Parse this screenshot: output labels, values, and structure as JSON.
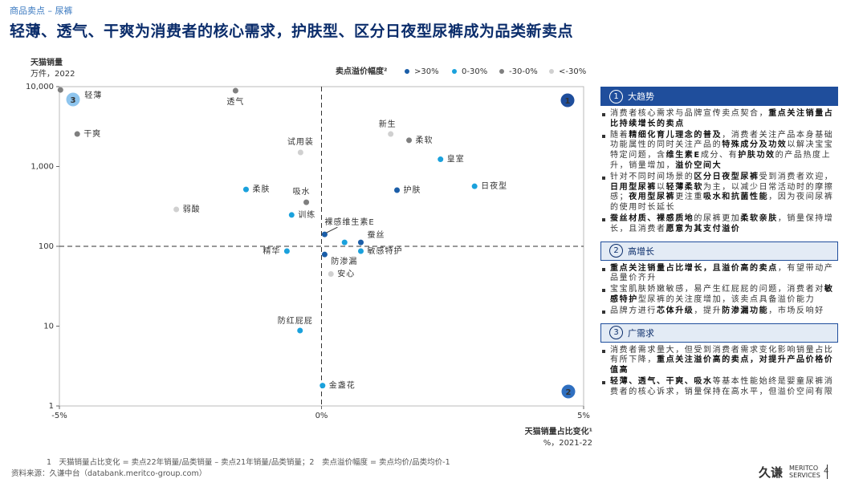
{
  "header": {
    "breadcrumb": "商品卖点 – 尿裤",
    "title": "轻薄、透气、干爽为消费者的核心需求，护肤型、区分日夜型尿裤成为品类新卖点"
  },
  "chart_data": {
    "type": "scatter",
    "y_title": "天猫销量",
    "y_subtitle": "万件，2022",
    "x_title": "天猫销量占比变化¹",
    "x_subtitle": "%，2021-22",
    "legend_title": "卖点溢价幅度²",
    "log_y": true,
    "xlim": [
      -5,
      5
    ],
    "xticks": [
      {
        "value": -5,
        "label": "-5%"
      },
      {
        "value": 0,
        "label": "0%"
      },
      {
        "value": 5,
        "label": "5%"
      }
    ],
    "ylim": [
      1,
      10000
    ],
    "yticks": [
      1,
      10,
      100,
      {
        "value": 1000,
        "label": "1,000"
      },
      {
        "value": 10000,
        "label": "10,000"
      }
    ],
    "quadrant_lines": {
      "x": 0,
      "y": 100
    },
    "annotations": [
      "1",
      "2",
      "3"
    ],
    "series": [
      {
        "name": ">30%",
        "color": "#1b5ea8",
        "labels": [
          "护肤",
          "裸感维生素E",
          "蚕丝",
          "防渗漏"
        ],
        "x": [
          1.44,
          0.06,
          0.75,
          0.06
        ],
        "values": [
          505,
          141,
          112,
          79
        ]
      },
      {
        "name": "0-30%",
        "color": "#1aa1dc",
        "labels": [
          "皇室",
          "日夜型",
          "柔肤",
          "训练",
          "精华",
          "敏感特护",
          null,
          "防红屁屁",
          "金盏花"
        ],
        "x": [
          2.27,
          2.92,
          -1.44,
          -0.57,
          -0.66,
          0.75,
          0.44,
          -0.41,
          0.02
        ],
        "values": [
          1230,
          565,
          516,
          247,
          87,
          87,
          112,
          8.8,
          1.8
        ]
      },
      {
        "name": "-30-0%",
        "color": "#7f7f7f",
        "labels": [
          "轻薄",
          "透气",
          "干爽",
          "柔软",
          "吸水"
        ],
        "x": [
          -4.98,
          -1.64,
          -4.66,
          1.67,
          -0.29
        ],
        "values": [
          9100,
          8900,
          2550,
          2130,
          356
        ]
      },
      {
        "name": "<-30%",
        "color": "#d0d0d0",
        "labels": [
          "新生",
          "试用装",
          "弱酸",
          "安心"
        ],
        "x": [
          1.32,
          -0.4,
          -2.77,
          0.18
        ],
        "values": [
          2550,
          1500,
          290,
          45
        ]
      }
    ]
  },
  "panel": [
    {
      "number": "1",
      "title": "大趋势",
      "bullets": [
        [
          "消费者核心需求与品牌宣传卖点契合，",
          {
            "t": "重点关注销量占比持续增长的卖点",
            "b": true
          }
        ],
        [
          "随着",
          {
            "t": "精细化育儿理念的普及",
            "b": true
          },
          "，消费者关注产品本身基础功能属性的同时关注产品的",
          {
            "t": "特殊成分及功效",
            "b": true
          },
          "以解决宝宝特定问题，含",
          {
            "t": "维生素E",
            "b": true
          },
          "成分、有",
          {
            "t": "护肤功效",
            "b": true
          },
          "的产品热度上升，销量增加，",
          {
            "t": "溢价空间大",
            "b": true
          }
        ],
        [
          "针对不同时间场景的",
          {
            "t": "区分日夜型尿裤",
            "b": true
          },
          "受到消费者欢迎，",
          {
            "t": "日用型尿裤",
            "b": true
          },
          "以",
          {
            "t": "轻薄柔软",
            "b": true
          },
          "为主，以减少日常活动时的摩擦感；",
          {
            "t": "夜用型尿裤",
            "b": true
          },
          "更注重",
          {
            "t": "吸水和抗菌性能",
            "b": true
          },
          "，因为夜间尿裤的使用时长延长"
        ],
        [
          {
            "t": "蚕丝材质、裸感质地",
            "b": true
          },
          "的尿裤更加",
          {
            "t": "柔软亲肤",
            "b": true
          },
          "，销量保持增长，且消费者",
          {
            "t": "愿意为其支付溢价",
            "b": true
          }
        ]
      ]
    },
    {
      "number": "2",
      "title": "高增长",
      "bullets": [
        [
          {
            "t": "重点关注销量占比增长，且溢价高的卖点",
            "b": true
          },
          "，有望带动产品量价齐升"
        ],
        [
          "宝宝肌肤娇嫩敏感，易产生红屁屁的问题，消费者对",
          {
            "t": "敏感特护",
            "b": true
          },
          "型尿裤的关注度增加，该卖点具备溢价能力"
        ],
        [
          "品牌方进行",
          {
            "t": "芯体升级",
            "b": true
          },
          "，提升",
          {
            "t": "防渗漏功能",
            "b": true
          },
          "，市场反响好"
        ]
      ]
    },
    {
      "number": "3",
      "title": "广需求",
      "bullets": [
        [
          "消费者需求量大，但受到消费者需求变化影响销量占比有所下降，",
          {
            "t": "重点关注溢价高的卖点，对提升产品价格价值高",
            "b": true
          }
        ],
        [
          {
            "t": "轻薄、透气、干爽、吸水",
            "b": true
          },
          "等基本性能始终是婴童尿裤消费者的核心诉求，销量保持在高水平，但溢价空间有限"
        ]
      ]
    }
  ],
  "footer": {
    "note": "1　天猫销量占比变化 = 卖点22年销量/品类销量 – 卖点21年销量/品类销量；2　卖点溢价幅度 = 卖点均价/品类均价-1",
    "source": "资料来源：久谦中台（databank.meritco-group.com）",
    "logo": "久谦",
    "logo_en_1": "MERITCO",
    "logo_en_2": "SERVICES",
    "page": "4"
  }
}
